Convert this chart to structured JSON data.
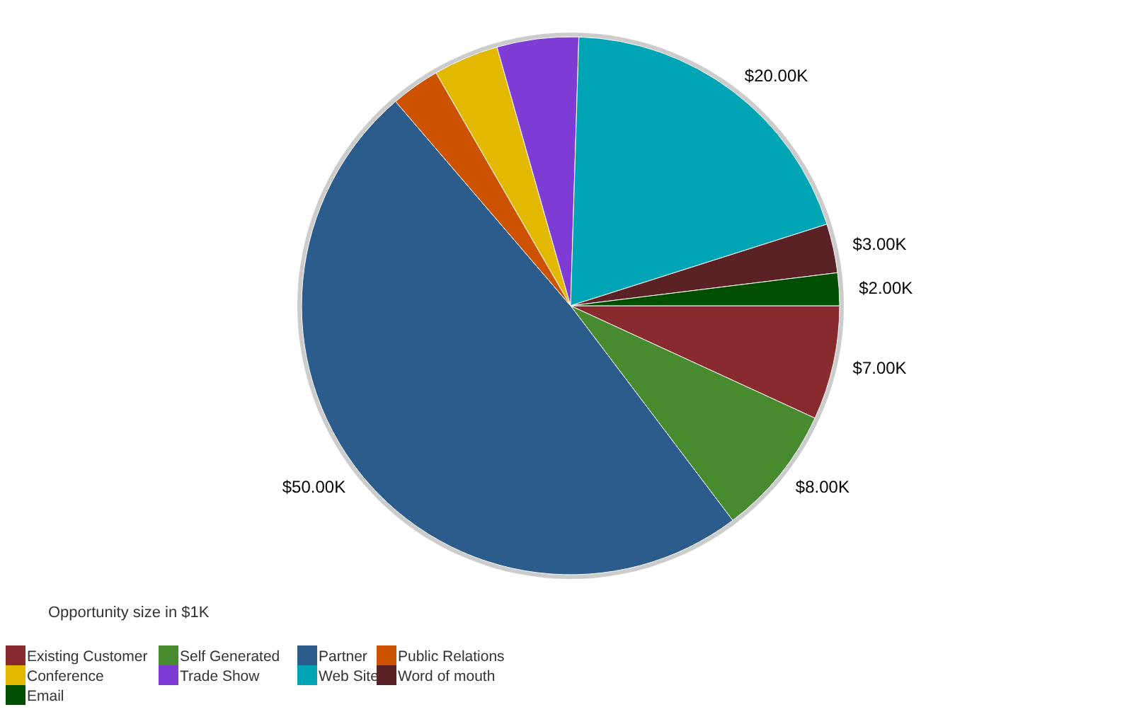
{
  "chart_data": {
    "type": "pie",
    "legend_title": "Opportunity size in $1K",
    "legend": "bottom left",
    "categories": [
      "Existing Customer",
      "Self Generated",
      "Partner",
      "Public Relations",
      "Conference",
      "Trade Show",
      "Web Site",
      "Word of mouth",
      "Email"
    ],
    "values": [
      7,
      8,
      50,
      3,
      4,
      5,
      20,
      3,
      2
    ],
    "value_labels": [
      "$7.00K",
      "$8.00K",
      "$50.00K",
      null,
      null,
      null,
      "$20.00K",
      "$3.00K",
      "$2.00K"
    ],
    "colors": [
      "#892a2e",
      "#478b2e",
      "#2b5c8c",
      "#cc5200",
      "#e3b800",
      "#7e3cd4",
      "#00a5b5",
      "#5b2226",
      "#004f00"
    ]
  }
}
